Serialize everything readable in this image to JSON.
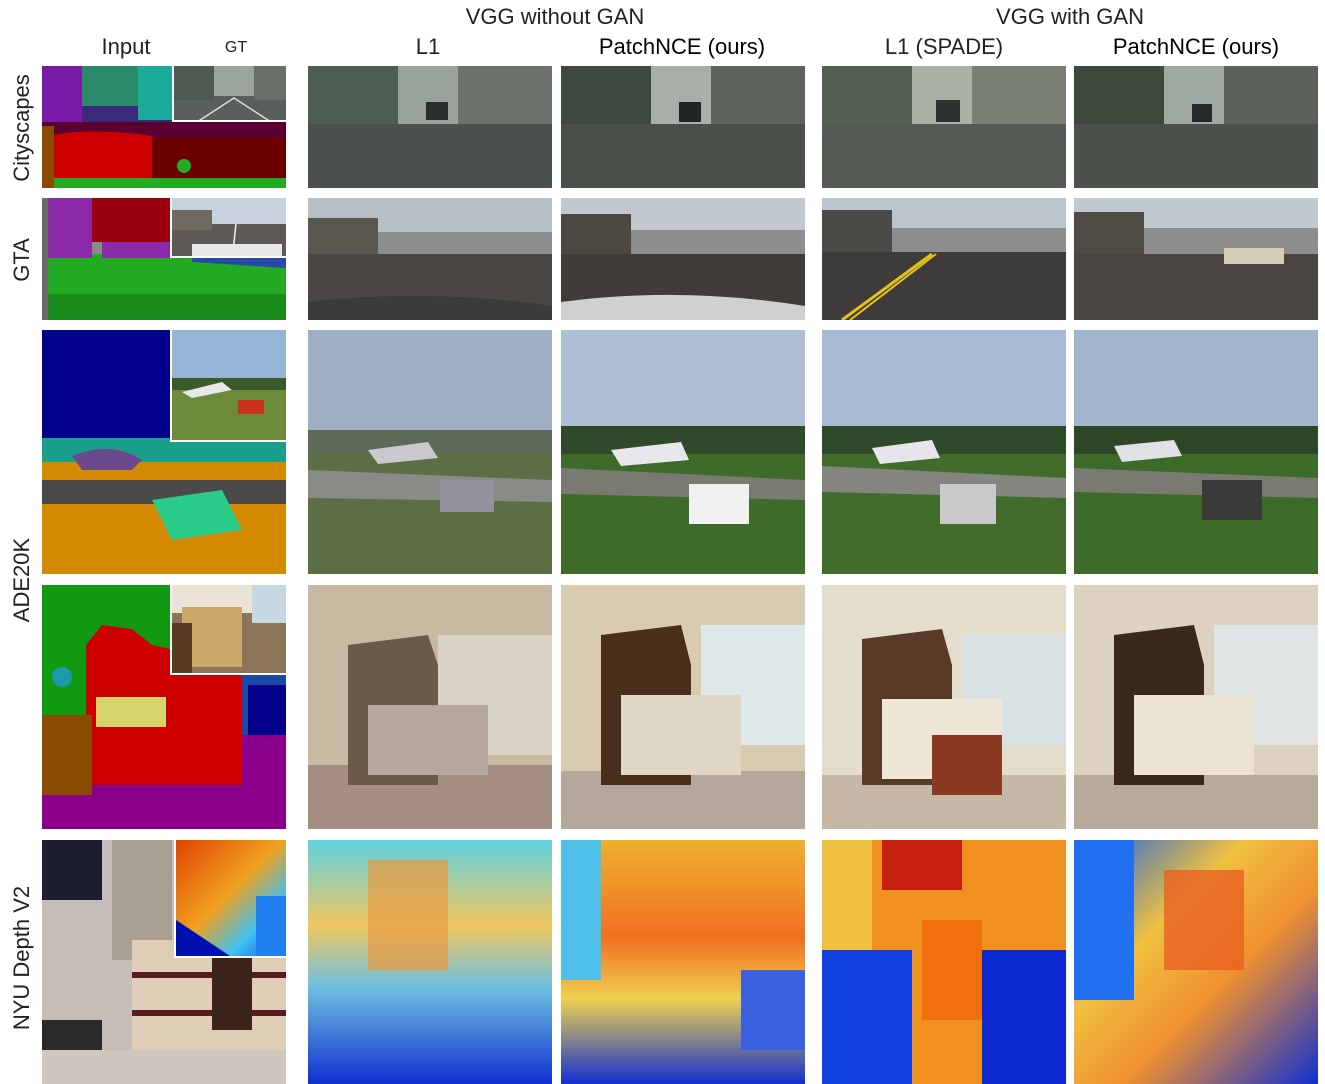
{
  "headers": {
    "group_without_gan": "VGG without GAN",
    "group_with_gan": "VGG with GAN",
    "col_input": "Input",
    "col_gt": "GT",
    "col_l1": "L1",
    "col_patchnce_1": "PatchNCE (ours)",
    "col_l1_spade": "L1 (SPADE)",
    "col_patchnce_2": "PatchNCE (ours)"
  },
  "rows": {
    "cityscapes": "Cityscapes",
    "gta": "GTA",
    "ade20k": "ADE20K",
    "nyu": "NYU Depth V2"
  },
  "colors": {
    "seg_red": "#cc0000",
    "seg_maroon": "#6a0000",
    "seg_green": "#22aa22",
    "seg_purple": "#8a2aa8",
    "seg_navy": "#00008a",
    "sky": "#9fb0c4",
    "grass": "#3e6b2a",
    "depth_blue": "#1a3cff",
    "depth_red": "#e03000"
  }
}
